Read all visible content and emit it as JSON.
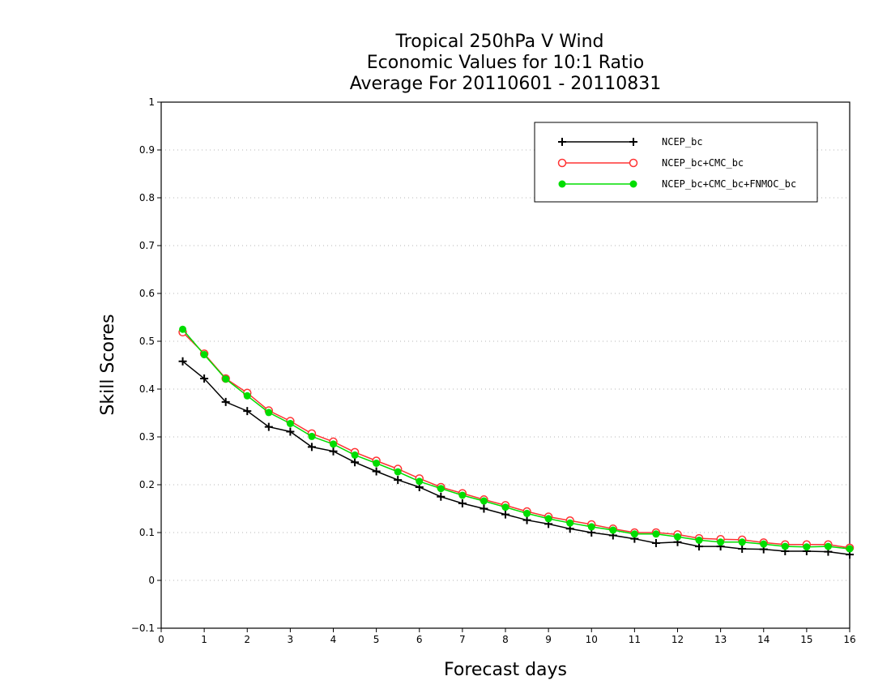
{
  "chart_data": {
    "type": "line",
    "title": [
      "Tropical 250hPa V Wind",
      "Economic Values for 10:1 Ratio",
      "Average For 20110601 - 20110831"
    ],
    "xlabel": "Forecast days",
    "ylabel": "Skill Scores",
    "xlim": [
      0,
      16
    ],
    "ylim": [
      -0.1,
      1
    ],
    "x_ticks": [
      0,
      1,
      2,
      3,
      4,
      5,
      6,
      7,
      8,
      9,
      10,
      11,
      12,
      13,
      14,
      15,
      16
    ],
    "y_ticks": [
      -0.1,
      0,
      0.1,
      0.2,
      0.3,
      0.4,
      0.5,
      0.6,
      0.7,
      0.8,
      0.9,
      1
    ],
    "grid": true,
    "legend_position": "top-right",
    "x": [
      0.5,
      1,
      1.5,
      2,
      2.5,
      3,
      3.5,
      4,
      4.5,
      5,
      5.5,
      6,
      6.5,
      7,
      7.5,
      8,
      8.5,
      9,
      9.5,
      10,
      10.5,
      11,
      11.5,
      12,
      12.5,
      13,
      13.5,
      14,
      14.5,
      15,
      15.5,
      16
    ],
    "series": [
      {
        "name": "NCEP_bc",
        "color": "#000000",
        "marker": "plus",
        "values": [
          0.458,
          0.422,
          0.373,
          0.354,
          0.321,
          0.311,
          0.279,
          0.27,
          0.247,
          0.228,
          0.21,
          0.195,
          0.175,
          0.161,
          0.15,
          0.138,
          0.126,
          0.118,
          0.108,
          0.1,
          0.094,
          0.087,
          0.078,
          0.08,
          0.071,
          0.071,
          0.066,
          0.065,
          0.061,
          0.061,
          0.06,
          0.054
        ]
      },
      {
        "name": "NCEP_bc+CMC_bc",
        "color": "#ff3333",
        "marker": "open-circle",
        "values": [
          0.519,
          0.474,
          0.422,
          0.392,
          0.355,
          0.333,
          0.307,
          0.29,
          0.268,
          0.25,
          0.233,
          0.213,
          0.195,
          0.182,
          0.169,
          0.157,
          0.144,
          0.133,
          0.125,
          0.117,
          0.108,
          0.1,
          0.1,
          0.096,
          0.088,
          0.086,
          0.085,
          0.079,
          0.075,
          0.075,
          0.075,
          0.068
        ]
      },
      {
        "name": "NCEP_bc+CMC_bc+FNMOC_bc",
        "color": "#00dd00",
        "marker": "filled-circle",
        "values": [
          0.525,
          0.472,
          0.421,
          0.386,
          0.351,
          0.328,
          0.301,
          0.285,
          0.262,
          0.245,
          0.227,
          0.207,
          0.192,
          0.178,
          0.166,
          0.153,
          0.14,
          0.129,
          0.12,
          0.112,
          0.105,
          0.097,
          0.097,
          0.091,
          0.084,
          0.08,
          0.08,
          0.076,
          0.071,
          0.07,
          0.071,
          0.066
        ]
      }
    ]
  }
}
